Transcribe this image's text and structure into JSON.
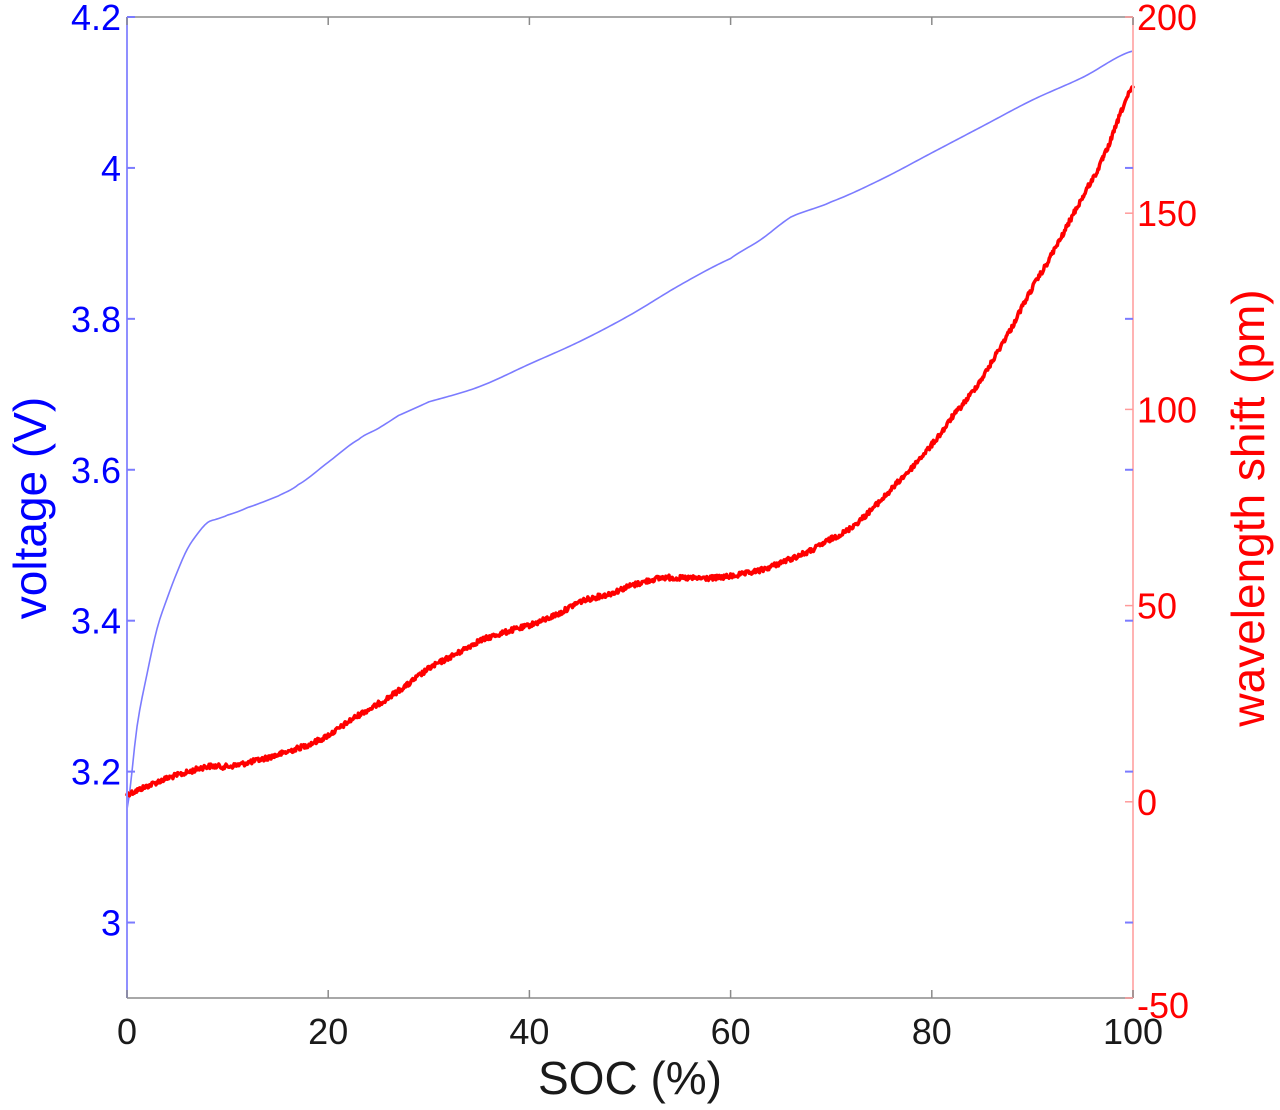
{
  "chart_data": {
    "type": "line",
    "title": "",
    "xlabel": "SOC (%)",
    "xlim": [
      0,
      100
    ],
    "x_ticks": [
      0,
      20,
      40,
      60,
      80,
      100
    ],
    "x_tick_labels": [
      "0",
      "20",
      "40",
      "60",
      "80",
      "100"
    ],
    "grid": false,
    "legend": null,
    "axes": {
      "left": {
        "label": "voltage (V)",
        "color": "#0000ff",
        "ylim": [
          2.9,
          4.2
        ],
        "ticks": [
          3,
          3.2,
          3.4,
          3.6,
          3.8,
          4,
          4.2
        ],
        "tick_labels": [
          "3",
          "3.2",
          "3.4",
          "3.6",
          "3.8",
          "4",
          "4.2"
        ]
      },
      "right": {
        "label": "wavelength shift (pm)",
        "color": "#ff0000",
        "ylim": [
          -50,
          200
        ],
        "ticks": [
          -50,
          0,
          50,
          100,
          150,
          200
        ],
        "tick_labels": [
          "-50",
          "0",
          "50",
          "100",
          "150",
          "200"
        ]
      }
    },
    "series": [
      {
        "name": "voltage",
        "axis": "left",
        "color": "#7b7bff",
        "line_width": 1.6,
        "x": [
          0,
          1,
          2,
          3,
          4,
          5,
          6,
          7,
          8,
          9,
          10,
          12,
          15,
          17,
          20,
          23,
          25,
          27,
          30,
          35,
          40,
          45,
          50,
          55,
          60,
          63,
          66,
          70,
          75,
          80,
          85,
          90,
          95,
          100
        ],
        "y": [
          3.15,
          3.26,
          3.33,
          3.39,
          3.43,
          3.465,
          3.495,
          3.515,
          3.53,
          3.535,
          3.54,
          3.55,
          3.565,
          3.58,
          3.61,
          3.64,
          3.655,
          3.672,
          3.69,
          3.71,
          3.74,
          3.77,
          3.805,
          3.845,
          3.88,
          3.905,
          3.935,
          3.955,
          3.985,
          4.02,
          4.055,
          4.09,
          4.12,
          4.155
        ]
      },
      {
        "name": "wavelength shift",
        "axis": "right",
        "color": "#ff0000",
        "line_width": 3.5,
        "noisy": true,
        "x": [
          0,
          2,
          4,
          6,
          8,
          10,
          12,
          15,
          18,
          20,
          23,
          25,
          28,
          30,
          33,
          35,
          38,
          40,
          43,
          45,
          48,
          50,
          53,
          55,
          58,
          60,
          63,
          65,
          68,
          70,
          72,
          75,
          78,
          80,
          82,
          85,
          88,
          90,
          92,
          95,
          97,
          100
        ],
        "y": [
          2,
          4,
          6,
          7.5,
          9,
          9,
          10,
          12,
          14.5,
          17,
          22,
          25,
          30,
          34,
          38,
          41,
          43.5,
          45,
          48,
          51,
          53,
          55,
          57,
          57,
          57,
          57.5,
          59,
          61,
          64,
          67,
          70,
          77,
          85,
          91,
          98,
          108,
          121,
          131,
          140,
          154,
          164,
          182
        ]
      }
    ]
  }
}
